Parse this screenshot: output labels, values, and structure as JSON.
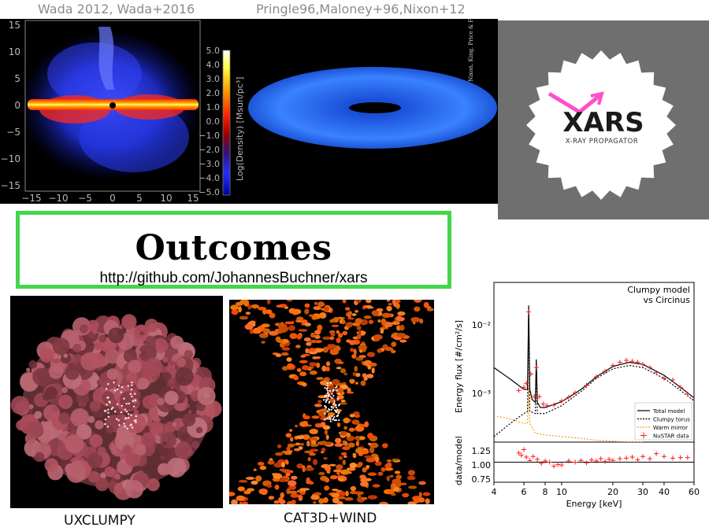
{
  "captions": {
    "sim_left": "Wada 2012, Wada+2016",
    "sim_right": "Pringle96,Maloney+96,Nixon+12",
    "uxclumpy": "UXCLUMPY",
    "cat3d": "CAT3D+WIND"
  },
  "sim": {
    "x_ticks": [
      "−15",
      "−10",
      "−5",
      "0",
      "5",
      "10",
      "15"
    ],
    "y_ticks": [
      "15",
      "10",
      "5",
      "0",
      "−5",
      "−10",
      "−15"
    ],
    "colorbar_ticks": [
      "5.0",
      "4.0",
      "3.0",
      "2.0",
      "1.0",
      "0.0",
      "−1.0",
      "−2.0",
      "−3.0",
      "−4.0",
      "−5.0"
    ],
    "colorbar_label": "Log(Density) [Msun/pc³]",
    "warp_credit": "Nixon, King, Price & Frank (2012)"
  },
  "logo": {
    "name": "XARS",
    "tagline": "X-RAY PROPAGATOR",
    "accent": "#ff4fc8"
  },
  "outcomes": {
    "title": "Outcomes",
    "url": "http://github.com/JohannesBuchner/xars"
  },
  "chart_data": {
    "type": "line",
    "title": "Clumpy model\nvs Circinus",
    "xlabel": "Energy [keV]",
    "ylabel_top": "Energy flux [#/cm²/s]",
    "ylabel_bottom": "data/model",
    "xscale": "log",
    "yscale": "log",
    "xlim": [
      4,
      60
    ],
    "ylim": [
      0.00035,
      0.035
    ],
    "x_ticks": [
      4,
      6,
      8,
      10,
      20,
      30,
      40,
      60
    ],
    "y_ticks": [
      "10⁻²",
      "10⁻³"
    ],
    "ratio_ticks": [
      "1.25",
      "1.00",
      "0.75"
    ],
    "ratio_ylim": [
      0.65,
      1.35
    ],
    "legend_position": "bottom-right",
    "series": [
      {
        "name": "Total model",
        "color": "#000000",
        "style": "solid",
        "x": [
          4,
          5,
          6,
          6.3,
          6.4,
          6.5,
          6.7,
          7.0,
          7.1,
          7.2,
          7.5,
          8,
          10,
          13,
          16,
          20,
          25,
          30,
          40,
          50,
          60
        ],
        "y": [
          0.003,
          0.00215,
          0.0016,
          0.0016,
          0.018,
          0.0016,
          0.0012,
          0.0011,
          0.0038,
          0.0011,
          0.00095,
          0.00095,
          0.00112,
          0.0016,
          0.0023,
          0.0031,
          0.0035,
          0.0033,
          0.0024,
          0.0017,
          0.00125
        ]
      },
      {
        "name": "Clumpy torus",
        "color": "#000000",
        "style": "dotted",
        "x": [
          4,
          5,
          6,
          6.3,
          6.4,
          6.5,
          7,
          7.1,
          7.2,
          8,
          10,
          13,
          16,
          20,
          25,
          30,
          40,
          50,
          60
        ],
        "y": [
          0.00041,
          0.0006,
          0.0008,
          0.00085,
          0.013,
          0.00085,
          0.0008,
          0.0031,
          0.0008,
          0.0008,
          0.001,
          0.0015,
          0.0022,
          0.0029,
          0.0032,
          0.003,
          0.0022,
          0.00155,
          0.00115
        ]
      },
      {
        "name": "Warm mirror",
        "color": "#ff9a1a",
        "style": "dotted",
        "x": [
          4,
          5,
          6,
          6.3,
          6.4,
          6.5,
          7,
          8,
          10,
          13,
          16,
          20,
          25,
          30
        ],
        "y": [
          0.00075,
          0.00068,
          0.0006,
          0.0006,
          0.0017,
          0.0006,
          0.00045,
          0.00043,
          0.00041,
          0.00039,
          0.00037,
          0.00036,
          0.00035,
          0.00035
        ]
      },
      {
        "name": "NuSTAR data",
        "color": "#ff1a1a",
        "style": "markers",
        "x": [
          5.6,
          6.0,
          6.2,
          6.4,
          6.6,
          6.9,
          7.1,
          7.4,
          7.8,
          8.2,
          9,
          10,
          11,
          12,
          14,
          16,
          18,
          20,
          22,
          24,
          26,
          28,
          30,
          33,
          36,
          40,
          45,
          50,
          55,
          60
        ],
        "y": [
          0.00155,
          0.0017,
          0.0019,
          0.015,
          0.0025,
          0.0013,
          0.003,
          0.0013,
          0.00105,
          0.001,
          0.00102,
          0.00115,
          0.00128,
          0.00145,
          0.0018,
          0.0023,
          0.0027,
          0.0032,
          0.0035,
          0.0037,
          0.0036,
          0.0035,
          0.0033,
          0.003,
          0.0026,
          0.0022,
          0.0021,
          0.0017,
          0.0014,
          0.0012
        ]
      }
    ],
    "ratio": {
      "x": [
        5.6,
        5.8,
        6.0,
        6.2,
        6.5,
        6.8,
        7.2,
        7.6,
        8.0,
        8.5,
        9,
        9.5,
        10,
        11,
        12,
        13,
        14,
        15,
        16,
        17,
        18,
        19,
        20,
        22,
        24,
        26,
        28,
        30,
        33,
        36,
        40,
        45,
        50,
        55
      ],
      "y": [
        1.16,
        1.12,
        1.22,
        1.09,
        1.03,
        1.1,
        1.05,
        0.98,
        1.02,
        1.0,
        0.93,
        0.96,
        0.95,
        1.02,
        1.0,
        1.03,
        0.99,
        1.04,
        1.02,
        1.06,
        1.01,
        1.05,
        1.03,
        1.06,
        1.07,
        1.09,
        1.04,
        1.1,
        1.06,
        1.15,
        1.1,
        1.07,
        1.08,
        1.08
      ]
    }
  }
}
